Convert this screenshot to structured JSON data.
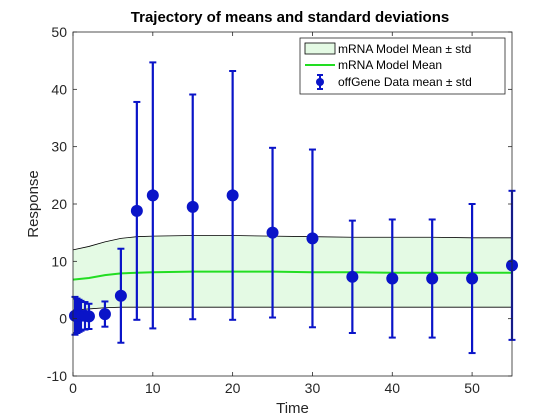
{
  "chart_data": {
    "type": "line",
    "title": "Trajectory of means and standard deviations",
    "xlabel": "Time",
    "ylabel": "Response",
    "xlim": [
      0,
      55
    ],
    "ylim": [
      -10,
      50
    ],
    "xticks": [
      "0",
      "10",
      "20",
      "30",
      "40",
      "50"
    ],
    "xtick_values": [
      0,
      10,
      20,
      30,
      40,
      50
    ],
    "yticks": [
      "-10",
      "0",
      "10",
      "20",
      "30",
      "40",
      "50"
    ],
    "ytick_values": [
      -10,
      0,
      10,
      20,
      30,
      40,
      50
    ],
    "grid": false,
    "legend_position": "top-right",
    "colors": {
      "band_fill": "#e4fae4",
      "band_edge": "#000000",
      "model_mean": "#22dd22",
      "data": "#0a14c8"
    },
    "series": [
      {
        "name": "mRNA Model Mean ± std",
        "kind": "band",
        "x": [
          0,
          2,
          4,
          6,
          8,
          10,
          15,
          20,
          25,
          30,
          35,
          40,
          45,
          50,
          55
        ],
        "lower": [
          1.5,
          1.7,
          1.9,
          2.0,
          2.0,
          2.0,
          2.0,
          2.0,
          2.0,
          2.0,
          2.0,
          2.0,
          2.0,
          2.0,
          2.0
        ],
        "upper": [
          12.0,
          12.6,
          13.4,
          14.0,
          14.3,
          14.4,
          14.5,
          14.5,
          14.4,
          14.3,
          14.2,
          14.2,
          14.2,
          14.1,
          14.1
        ]
      },
      {
        "name": "mRNA Model Mean",
        "kind": "line",
        "x": [
          0,
          2,
          4,
          6,
          8,
          10,
          15,
          20,
          25,
          30,
          35,
          40,
          45,
          50,
          55
        ],
        "values": [
          6.8,
          7.1,
          7.6,
          7.9,
          8.0,
          8.1,
          8.2,
          8.2,
          8.2,
          8.1,
          8.1,
          8.0,
          8.0,
          8.0,
          8.0
        ]
      },
      {
        "name": "offGene Data mean ± std",
        "kind": "errorbar",
        "x": [
          0.25,
          0.5,
          0.75,
          1,
          1.5,
          2,
          4,
          6,
          8,
          10,
          15,
          20,
          25,
          30,
          35,
          40,
          45,
          50,
          55
        ],
        "values": [
          0.5,
          0.5,
          0.5,
          0.5,
          0.5,
          0.4,
          0.8,
          4.0,
          18.8,
          21.5,
          19.5,
          21.5,
          15.0,
          14.0,
          7.3,
          7.0,
          7.0,
          7.0,
          9.3
        ],
        "std": [
          3.3,
          3.0,
          2.8,
          2.6,
          2.4,
          2.2,
          2.2,
          8.2,
          19.0,
          23.2,
          19.6,
          21.7,
          14.8,
          15.5,
          9.8,
          10.3,
          10.3,
          13.0,
          13.0
        ]
      }
    ]
  }
}
